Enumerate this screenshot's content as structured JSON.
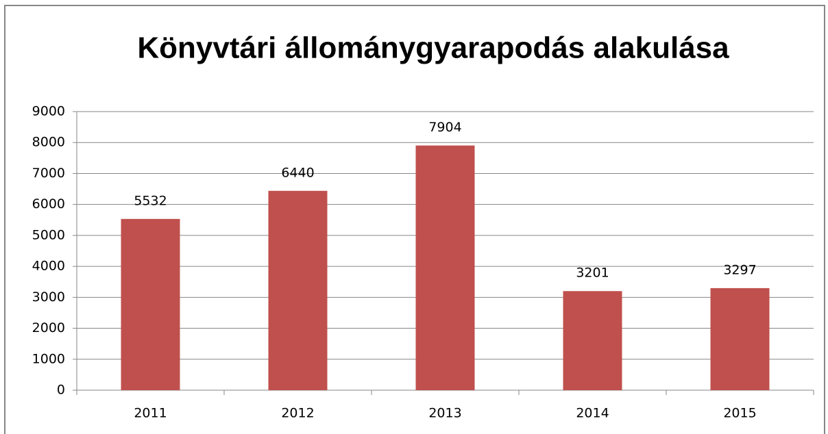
{
  "chart_data": {
    "type": "bar",
    "title": "Könyvtári állománygyarapodás alakulása",
    "categories": [
      "2011",
      "2012",
      "2013",
      "2014",
      "2015"
    ],
    "values": [
      5532,
      6440,
      7904,
      3201,
      3297
    ],
    "color": "#c0504d",
    "ylim": [
      0,
      9000
    ],
    "yticks": [
      0,
      1000,
      2000,
      3000,
      4000,
      5000,
      6000,
      7000,
      8000,
      9000
    ],
    "grid": true
  }
}
